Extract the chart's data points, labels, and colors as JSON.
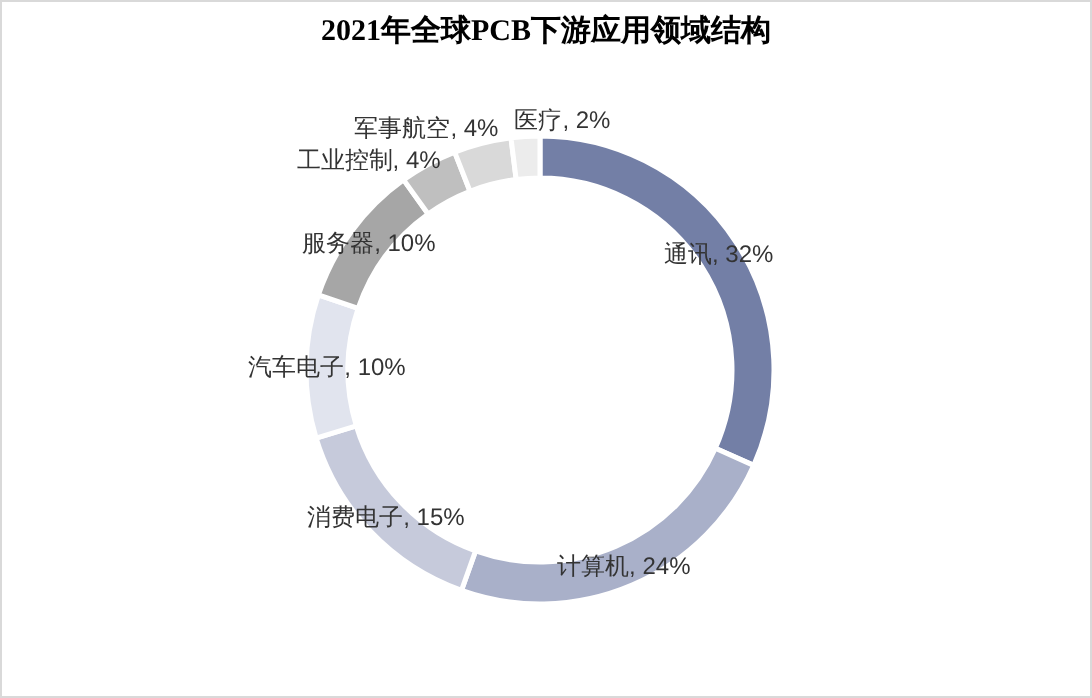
{
  "chart_data": {
    "type": "donut",
    "title": "2021年全球PCB下游应用领域结构",
    "categories": [
      "通讯",
      "计算机",
      "消费电子",
      "汽车电子",
      "服务器",
      "工业控制",
      "军事航空",
      "医疗"
    ],
    "values": [
      32,
      24,
      15,
      10,
      10,
      4,
      4,
      2
    ],
    "value_labels": [
      "32%",
      "24%",
      "15%",
      "10%",
      "10%",
      "4%",
      "4%",
      "2%"
    ],
    "colors": [
      "#737fa6",
      "#a9b0c9",
      "#c6cadb",
      "#e1e4ee",
      "#a6a6a6",
      "#bfbfbf",
      "#d9d9d9",
      "#ececec"
    ]
  }
}
